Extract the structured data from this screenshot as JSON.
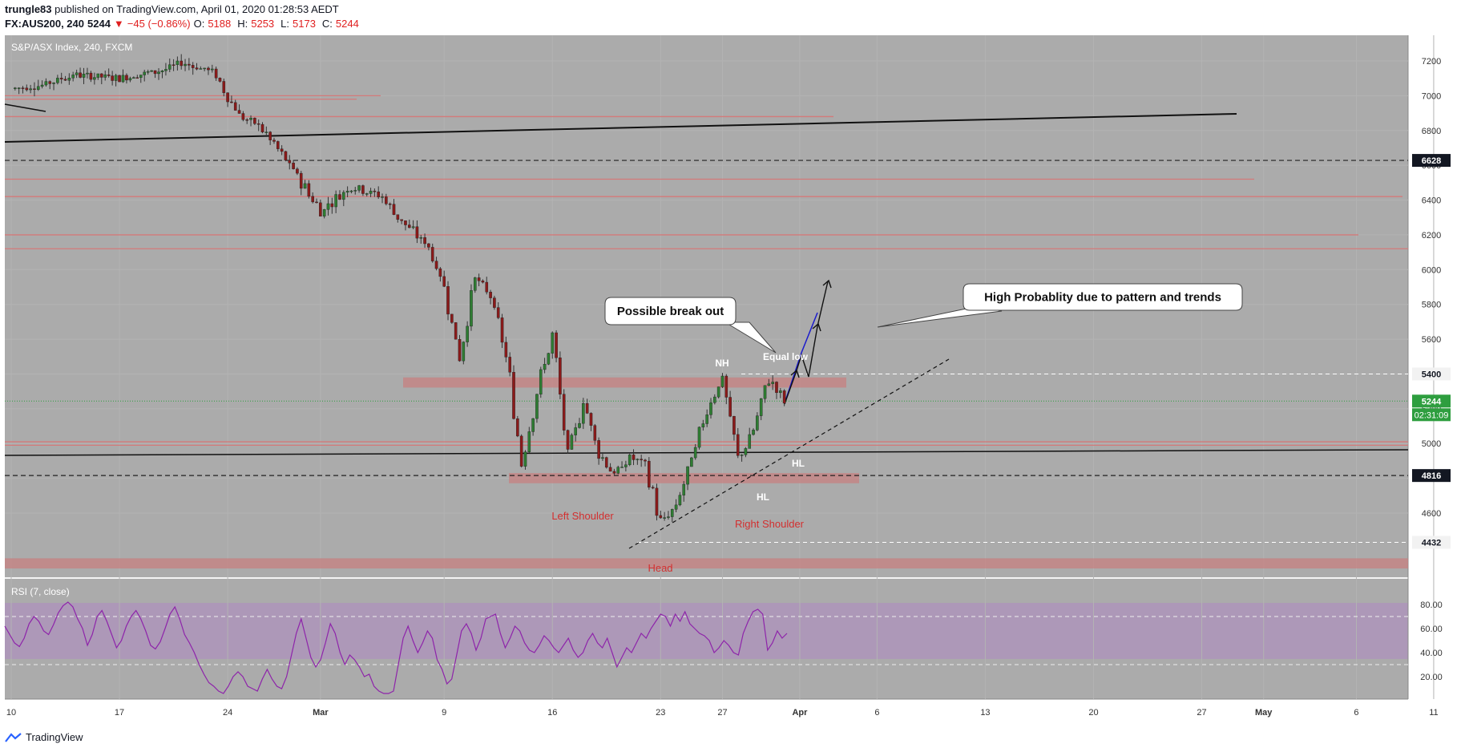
{
  "header": {
    "author": "trungle83",
    "published_text": "published on TradingView.com, April 01, 2020 01:28:53 AEDT",
    "symbol": "FX:AUS200, 240",
    "last": "5244",
    "change": "−45 (−0.86%)",
    "open_label": "O:",
    "open": "5188",
    "high_label": "H:",
    "high": "5253",
    "low_label": "L:",
    "low": "5173",
    "close_label": "C:",
    "close": "5244"
  },
  "chart_data": [
    {
      "type": "candlestick",
      "title": "S&P/ASX Index, 240, FXCM",
      "ylim": [
        4260,
        7260
      ],
      "yticks": [
        4600,
        4800,
        5000,
        5200,
        5400,
        5600,
        5800,
        6000,
        6200,
        6400,
        6600,
        6800,
        7000,
        7200
      ],
      "ytick_labels": [
        "4600",
        "4800",
        "5000",
        "5200",
        "5400",
        "5600",
        "5800",
        "6000",
        "6200",
        "6400",
        "6600",
        "6800",
        "7000",
        "7200"
      ],
      "xtick_labels": [
        "10",
        "17",
        "24",
        "Mar",
        "9",
        "16",
        "23",
        "27",
        "Apr",
        "6",
        "13",
        "20",
        "27",
        "May",
        "6",
        "11"
      ],
      "price_markers": [
        {
          "value": 6628,
          "label": "6628",
          "style": "black"
        },
        {
          "value": 5400,
          "label": "5400",
          "style": "light"
        },
        {
          "value": 5244,
          "label": "5244",
          "style": "green"
        },
        {
          "value": 4816,
          "label": "4816",
          "style": "black"
        },
        {
          "value": 4432,
          "label": "4432",
          "style": "light"
        }
      ],
      "countdown": "02:31:09",
      "series": [
        {
          "name": "",
          "path": [
            {
              "date": "2020-02-10",
              "close": 7040
            },
            {
              "date": "2020-02-12",
              "close": 7060
            },
            {
              "date": "2020-02-14",
              "close": 7120
            },
            {
              "date": "2020-02-17",
              "close": 7100
            },
            {
              "date": "2020-02-20",
              "close": 7150
            },
            {
              "date": "2020-02-21",
              "close": 7190
            },
            {
              "date": "2020-02-23",
              "close": 7140
            },
            {
              "date": "2020-02-24",
              "close": 6990
            },
            {
              "date": "2020-02-25",
              "close": 6870
            },
            {
              "date": "2020-02-26",
              "close": 6830
            },
            {
              "date": "2020-02-27",
              "close": 6720
            },
            {
              "date": "2020-02-28",
              "close": 6600
            },
            {
              "date": "2020-03-01",
              "close": 6340
            },
            {
              "date": "2020-03-03",
              "close": 6480
            },
            {
              "date": "2020-03-05",
              "close": 6420
            },
            {
              "date": "2020-03-06",
              "close": 6300
            },
            {
              "date": "2020-03-08",
              "close": 6130
            },
            {
              "date": "2020-03-09",
              "close": 5900
            },
            {
              "date": "2020-03-10",
              "close": 5500
            },
            {
              "date": "2020-03-11",
              "close": 5950
            },
            {
              "date": "2020-03-12",
              "close": 5850
            },
            {
              "date": "2020-03-13",
              "close": 5500
            },
            {
              "date": "2020-03-14",
              "close": 4900
            },
            {
              "date": "2020-03-15",
              "close": 5300
            },
            {
              "date": "2020-03-16",
              "close": 5620
            },
            {
              "date": "2020-03-17",
              "close": 4900
            },
            {
              "date": "2020-03-18",
              "close": 5250
            },
            {
              "date": "2020-03-19",
              "close": 4950
            },
            {
              "date": "2020-03-20",
              "close": 4820
            },
            {
              "date": "2020-03-21",
              "close": 4920
            },
            {
              "date": "2020-03-22",
              "close": 4880
            },
            {
              "date": "2020-03-23",
              "close": 4540
            },
            {
              "date": "2020-03-24",
              "close": 4640
            },
            {
              "date": "2020-03-25",
              "close": 4900
            },
            {
              "date": "2020-03-26",
              "close": 5200
            },
            {
              "date": "2020-03-27",
              "close": 5380
            },
            {
              "date": "2020-03-28",
              "close": 4900
            },
            {
              "date": "2020-03-29",
              "close": 5080
            },
            {
              "date": "2020-03-30",
              "close": 5380
            },
            {
              "date": "2020-03-31",
              "close": 5244
            }
          ]
        }
      ],
      "levels_red": [
        7000,
        6980,
        6880,
        6520,
        6420,
        6200,
        6120,
        5010,
        4990
      ],
      "zones": [
        {
          "from": 5340,
          "to": 5380
        },
        {
          "from": 4790,
          "to": 4830
        },
        {
          "from": 4300,
          "to": 4340
        }
      ],
      "annotations": [
        {
          "text": "Possible break out",
          "kind": "callout"
        },
        {
          "text": "High Probablity due to pattern and trends",
          "kind": "callout"
        },
        {
          "text": "NH",
          "kind": "label"
        },
        {
          "text": "Equal low",
          "kind": "label"
        },
        {
          "text": "HL",
          "kind": "label"
        },
        {
          "text": "HL",
          "kind": "label"
        },
        {
          "text": "Left Shoulder",
          "kind": "pattern"
        },
        {
          "text": "Head",
          "kind": "pattern"
        },
        {
          "text": "Right Shoulder",
          "kind": "pattern"
        }
      ]
    },
    {
      "type": "line",
      "title": "RSI (7, close)",
      "ylim": [
        0,
        100
      ],
      "yticks": [
        20,
        40,
        60,
        80
      ],
      "ytick_labels": [
        "20.00",
        "40.00",
        "60.00",
        "80.00"
      ],
      "bands": [
        30,
        70
      ],
      "series": [
        {
          "name": "",
          "values": [
            62,
            55,
            48,
            45,
            52,
            64,
            70,
            66,
            58,
            55,
            63,
            73,
            79,
            82,
            78,
            68,
            60,
            46,
            55,
            70,
            75,
            66,
            55,
            44,
            50,
            62,
            70,
            75,
            68,
            58,
            46,
            43,
            49,
            60,
            72,
            78,
            68,
            55,
            48,
            40,
            30,
            22,
            15,
            12,
            8,
            6,
            12,
            20,
            24,
            20,
            12,
            10,
            8,
            18,
            26,
            18,
            12,
            10,
            20,
            38,
            56,
            68,
            52,
            36,
            28,
            34,
            48,
            64,
            56,
            40,
            30,
            38,
            34,
            28,
            20,
            22,
            12,
            8,
            6,
            6,
            8,
            30,
            52,
            62,
            50,
            40,
            48,
            58,
            52,
            34,
            26,
            14,
            18,
            38,
            58,
            64,
            56,
            42,
            52,
            68,
            70,
            72,
            56,
            44,
            52,
            62,
            58,
            48,
            42,
            40,
            46,
            54,
            50,
            44,
            40,
            46,
            52,
            42,
            36,
            40,
            50,
            56,
            48,
            44,
            52,
            40,
            28,
            36,
            44,
            40,
            48,
            56,
            52,
            60,
            66,
            72,
            70,
            62,
            72,
            66,
            74,
            64,
            60,
            56,
            54,
            50,
            40,
            44,
            50,
            46,
            40,
            38,
            56,
            66,
            74,
            76,
            72,
            42,
            48,
            58,
            52,
            56
          ]
        }
      ]
    }
  ],
  "footer": {
    "brand": "TradingView"
  }
}
